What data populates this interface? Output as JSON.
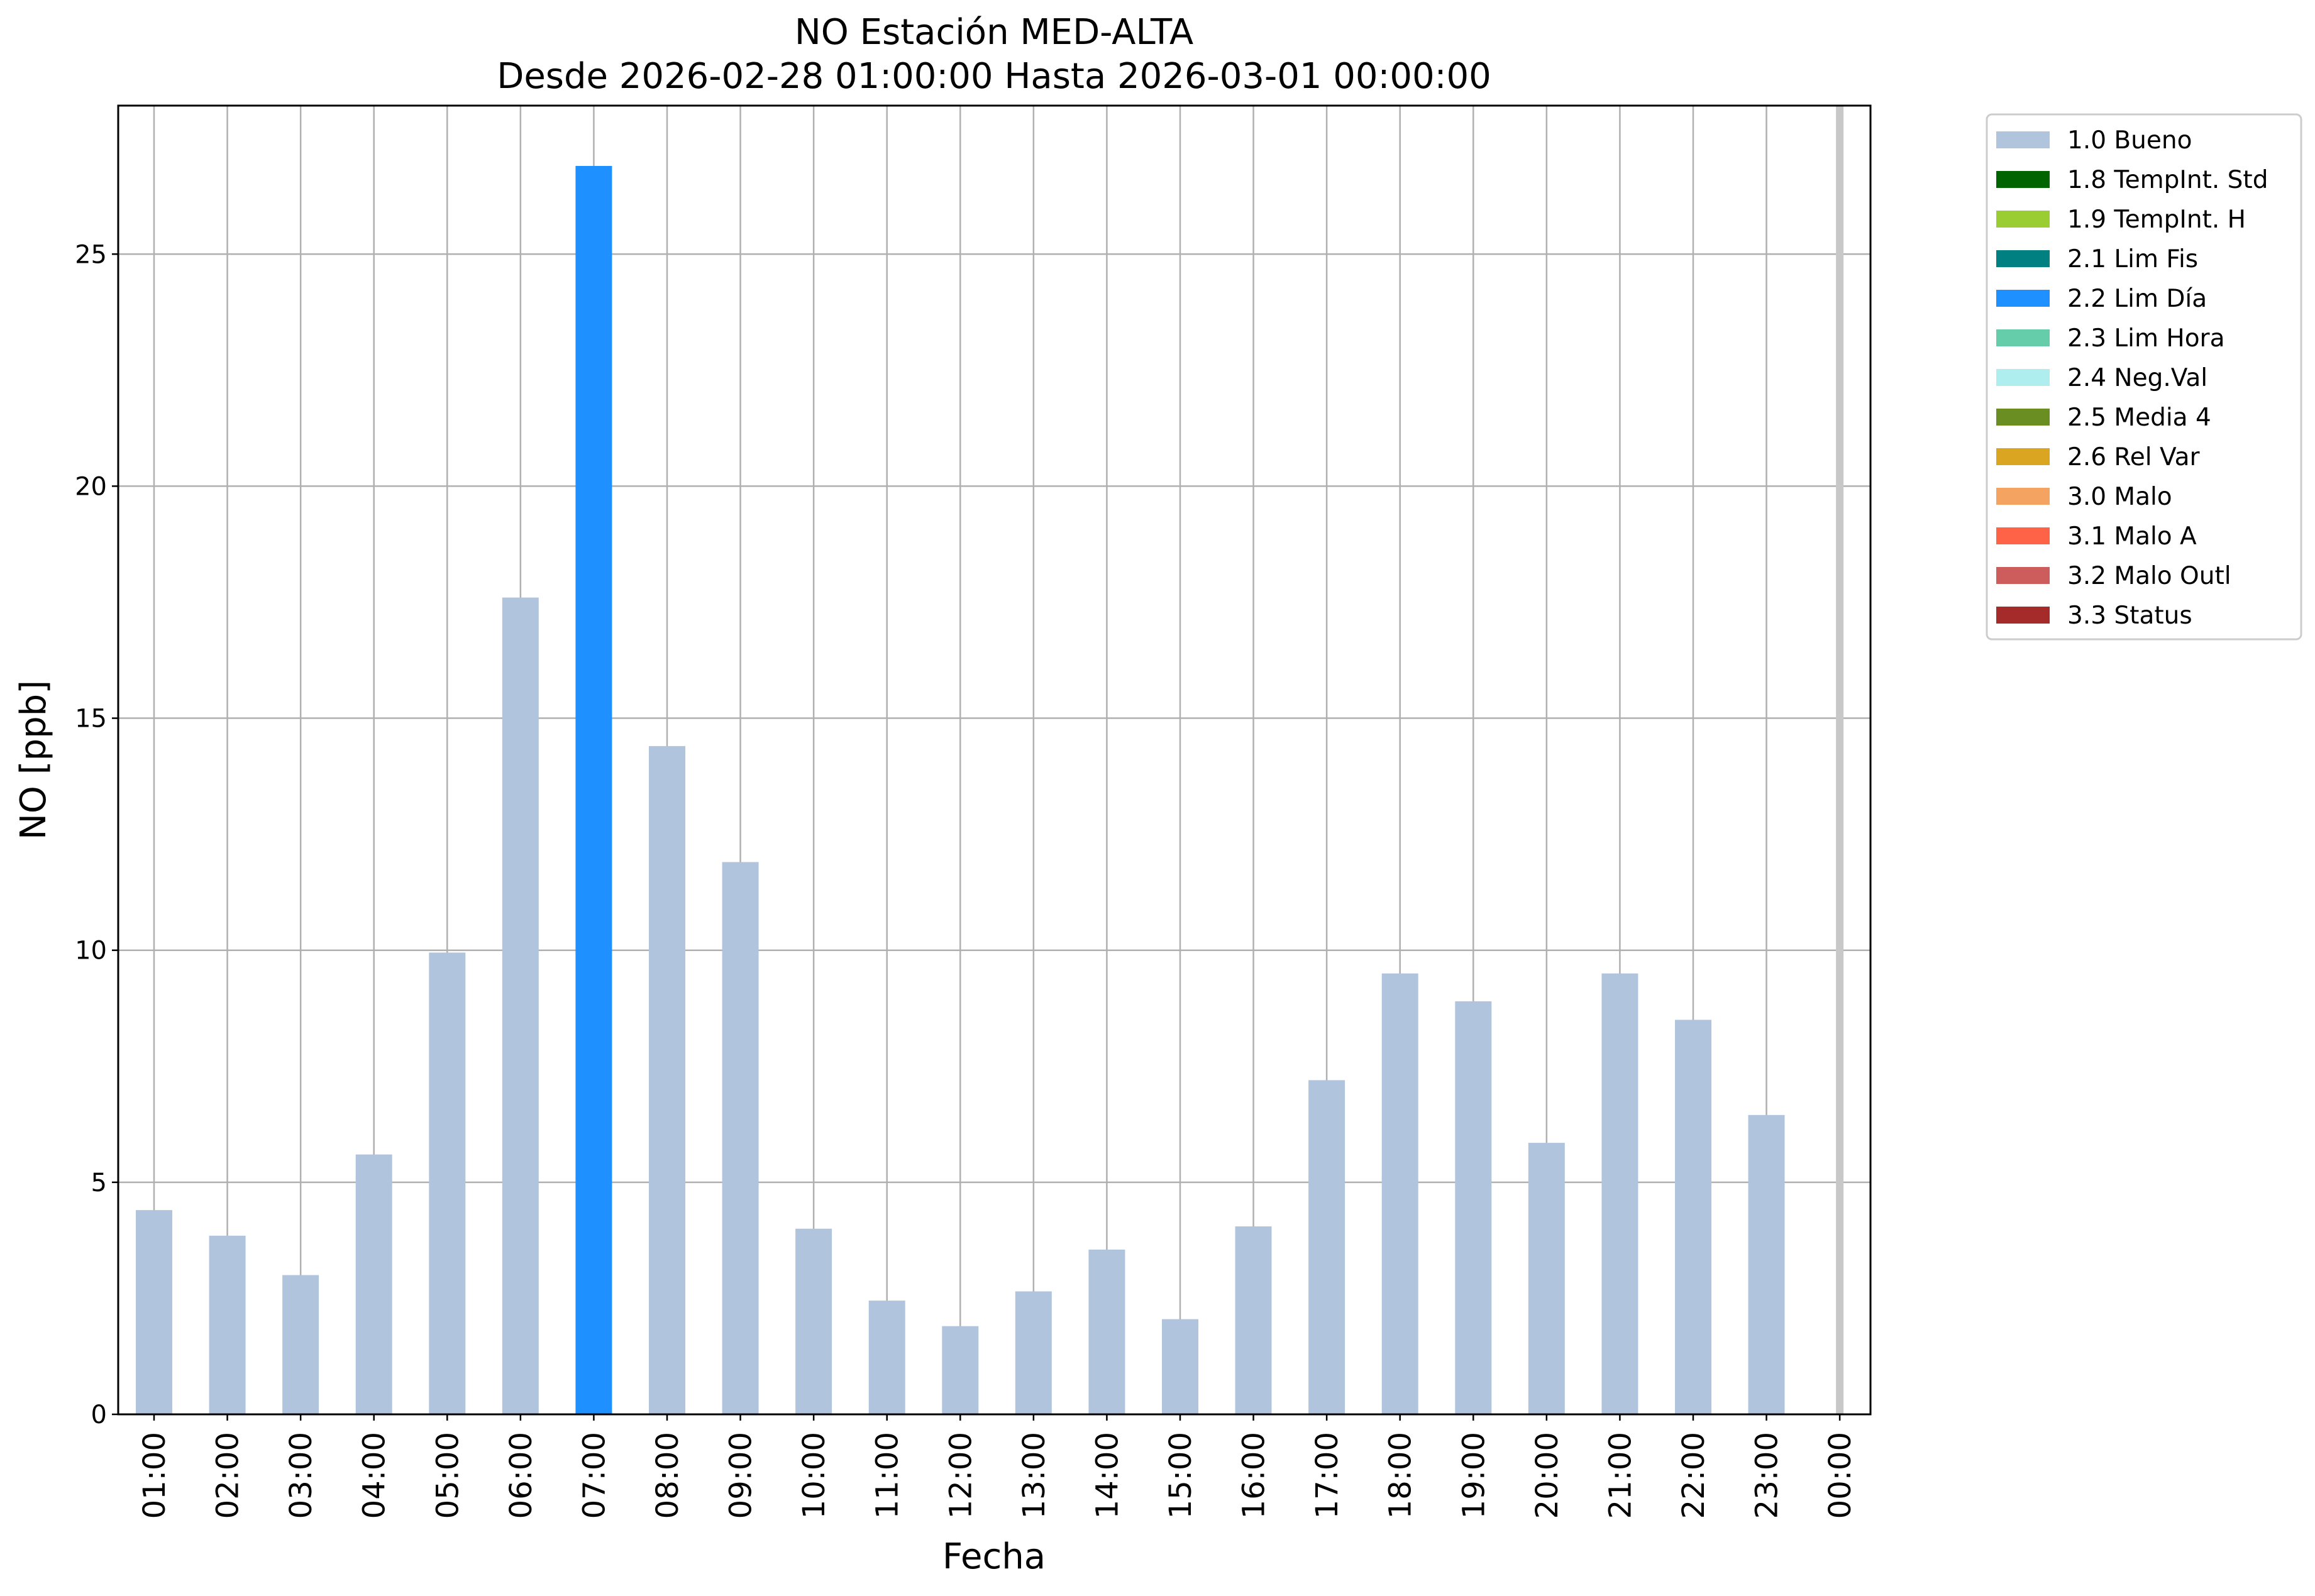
{
  "chart_data": {
    "type": "bar",
    "title": [
      "NO Estación MED-ALTA",
      "Desde 2026-02-28 01:00:00 Hasta 2026-03-01 00:00:00"
    ],
    "xlabel": "Fecha",
    "ylabel": "NO [ppb]",
    "ylim": [
      0,
      28.2
    ],
    "yticks": [
      0,
      5,
      10,
      15,
      20,
      25
    ],
    "grid": true,
    "legend_position": "outside-top-right",
    "categories": [
      "01:00",
      "02:00",
      "03:00",
      "04:00",
      "05:00",
      "06:00",
      "07:00",
      "08:00",
      "09:00",
      "10:00",
      "11:00",
      "12:00",
      "13:00",
      "14:00",
      "15:00",
      "16:00",
      "17:00",
      "18:00",
      "19:00",
      "20:00",
      "21:00",
      "22:00",
      "23:00",
      "00:00"
    ],
    "values": [
      4.4,
      3.85,
      3.0,
      5.6,
      9.95,
      17.6,
      26.9,
      14.4,
      11.9,
      4.0,
      2.45,
      1.9,
      2.65,
      3.55,
      2.05,
      4.05,
      7.2,
      9.5,
      8.9,
      5.85,
      9.5,
      8.5,
      6.45,
      null
    ],
    "flags": [
      "1.0 Bueno",
      "1.0 Bueno",
      "1.0 Bueno",
      "1.0 Bueno",
      "1.0 Bueno",
      "1.0 Bueno",
      "2.2 Lim Día",
      "1.0 Bueno",
      "1.0 Bueno",
      "1.0 Bueno",
      "1.0 Bueno",
      "1.0 Bueno",
      "1.0 Bueno",
      "1.0 Bueno",
      "1.0 Bueno",
      "1.0 Bueno",
      "1.0 Bueno",
      "1.0 Bueno",
      "1.0 Bueno",
      "1.0 Bueno",
      "1.0 Bueno",
      "1.0 Bueno",
      "1.0 Bueno",
      null
    ],
    "legend": [
      {
        "label": "1.0 Bueno",
        "color": "#b0c4de"
      },
      {
        "label": "1.8 TempInt. Std",
        "color": "#006400"
      },
      {
        "label": "1.9 TempInt. H",
        "color": "#9acd32"
      },
      {
        "label": "2.1 Lim Fis",
        "color": "#008080"
      },
      {
        "label": "2.2 Lim Día",
        "color": "#1e90ff"
      },
      {
        "label": "2.3 Lim Hora",
        "color": "#66cdaa"
      },
      {
        "label": "2.4 Neg.Val",
        "color": "#afeeee"
      },
      {
        "label": "2.5 Media 4",
        "color": "#6b8e23"
      },
      {
        "label": "2.6 Rel Var",
        "color": "#daa520"
      },
      {
        "label": "3.0 Malo",
        "color": "#f4a460"
      },
      {
        "label": "3.1 Malo A",
        "color": "#ff6347"
      },
      {
        "label": "3.2 Malo Outl",
        "color": "#cd5c5c"
      },
      {
        "label": "3.3 Status",
        "color": "#a52a2a"
      }
    ]
  }
}
